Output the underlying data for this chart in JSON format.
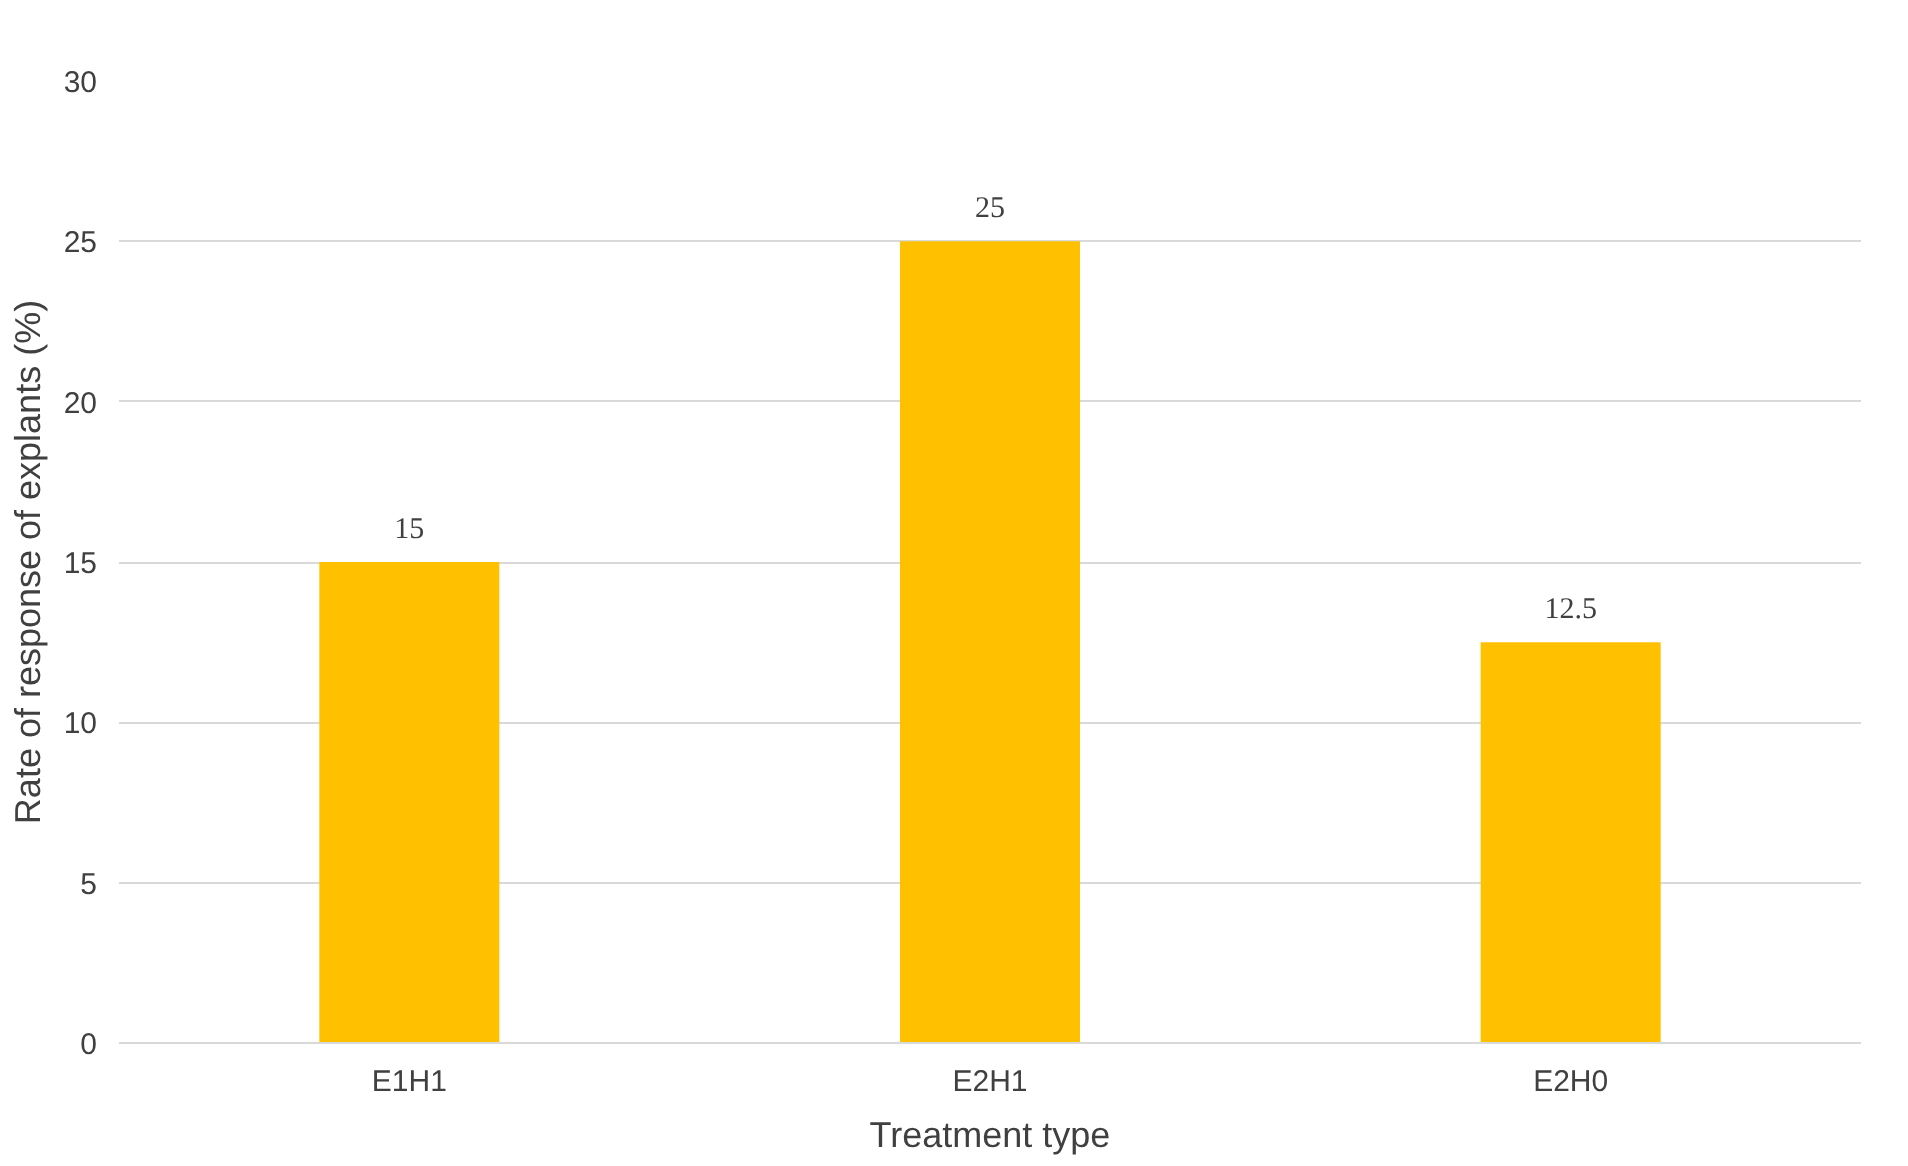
{
  "chart_data": {
    "type": "bar",
    "xlabel": "Treatment type",
    "ylabel": "Rate of response of explants (%)",
    "categories": [
      "E1H1",
      "E2H1",
      "E2H0"
    ],
    "values": [
      15,
      25,
      12.5
    ],
    "color": "#ffc000",
    "ylim": [
      0,
      30
    ],
    "yticks": [
      0,
      5,
      10,
      15,
      20,
      25,
      30
    ],
    "grid": "y",
    "data_labels": true
  }
}
